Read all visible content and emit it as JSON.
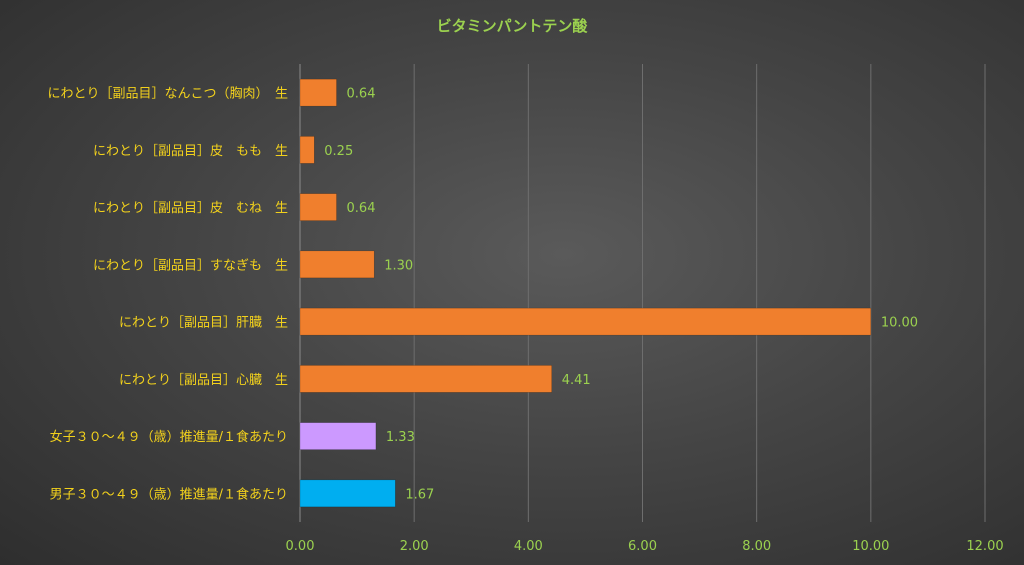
{
  "chart_data": {
    "type": "bar",
    "orientation": "horizontal",
    "title": "ビタミンパントテン酸",
    "categories": [
      "にわとり［副品目］なんこつ（胸肉）　生",
      "にわとり［副品目］皮　もも　生",
      "にわとり［副品目］皮　むね　生",
      "にわとり［副品目］すなぎも　生",
      "にわとり［副品目］肝臓　生",
      "にわとり［副品目］心臓　生",
      "女子３０～４９（歳）推進量/１食あたり",
      "男子３０～４９（歳）推進量/１食あたり"
    ],
    "values": [
      0.64,
      0.25,
      0.64,
      1.3,
      10.0,
      4.41,
      1.33,
      1.67
    ],
    "value_labels": [
      "0.64",
      "0.25",
      "0.64",
      "1.30",
      "10.00",
      "4.41",
      "1.33",
      "1.67"
    ],
    "colors": [
      "#f07f2d",
      "#f07f2d",
      "#f07f2d",
      "#f07f2d",
      "#f07f2d",
      "#f07f2d",
      "#cc99ff",
      "#00aef0"
    ],
    "xlim": [
      0,
      12
    ],
    "xticks": [
      "0.00",
      "2.00",
      "4.00",
      "6.00",
      "8.00",
      "10.00",
      "12.00"
    ],
    "xtick_values": [
      0,
      2,
      4,
      6,
      8,
      10,
      12
    ],
    "grid": true
  }
}
